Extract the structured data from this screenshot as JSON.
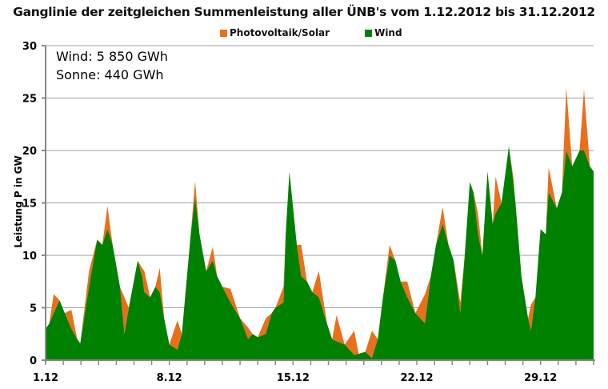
{
  "chart_data": {
    "type": "area",
    "stacked": true,
    "title": "Ganglinie der zeitgleichen Summenleistung aller ÜNB's vom 1.12.2012 bis 31.12.2012",
    "ylabel": "Leistung P in GW",
    "xlabel": "",
    "ylim": [
      0,
      30
    ],
    "yticks": [
      "0",
      "5",
      "10",
      "15",
      "20",
      "25",
      "30"
    ],
    "xticks": [
      "1.12",
      "8.12",
      "15.12",
      "22.12",
      "29.12"
    ],
    "grid": true,
    "legend_placement": "top",
    "annotations": [
      "Wind:  5 850 GWh",
      "Sonne:  440 GWh"
    ],
    "series": [
      {
        "name": "Photovoltaik/Solar",
        "color": "#E8701A"
      },
      {
        "name": "Wind",
        "color": "#008000"
      }
    ],
    "point_format": [
      "date time",
      "Wind GW",
      "Photovoltaik/Solar GW"
    ],
    "points": [
      [
        "01.12. 00:00",
        3,
        0
      ],
      [
        "01.12. 05:00",
        3.5,
        0
      ],
      [
        "01.12. 11:00",
        4.5,
        1.8
      ],
      [
        "01.12. 19:00",
        5.7,
        0
      ],
      [
        "02.12. 02:00",
        4.5,
        0
      ],
      [
        "02.12. 11:00",
        3,
        1.8
      ],
      [
        "02.12. 19:00",
        2,
        0
      ],
      [
        "02.12. 23:00",
        1.6,
        0
      ],
      [
        "03.12. 11:00",
        7,
        1.5
      ],
      [
        "03.12. 22:00",
        11.5,
        0
      ],
      [
        "04.12. 05:00",
        11,
        0
      ],
      [
        "04.12. 12:00",
        12.5,
        2.2
      ],
      [
        "04.12. 19:00",
        11,
        0
      ],
      [
        "05.12. 05:00",
        7,
        0
      ],
      [
        "05.12. 11:00",
        2.5,
        3.5
      ],
      [
        "05.12. 17:00",
        5,
        0
      ],
      [
        "06.12. 05:00",
        9.5,
        0
      ],
      [
        "06.12. 11:00",
        8,
        0.8
      ],
      [
        "06.12. 14:00",
        6.5,
        2
      ],
      [
        "06.12. 22:00",
        6,
        0
      ],
      [
        "07.12. 05:00",
        7,
        0
      ],
      [
        "07.12. 11:00",
        6.5,
        2.3
      ],
      [
        "07.12. 17:00",
        4,
        0
      ],
      [
        "08.12. 00:00",
        1.5,
        0
      ],
      [
        "08.12. 11:00",
        1,
        2.8
      ],
      [
        "08.12. 17:00",
        2.5,
        0
      ],
      [
        "09.12. 05:00",
        12,
        0
      ],
      [
        "09.12. 11:00",
        15.5,
        1.6
      ],
      [
        "09.12. 17:00",
        12,
        0
      ],
      [
        "10.12. 02:00",
        8.5,
        0
      ],
      [
        "10.12. 11:00",
        9.5,
        1.3
      ],
      [
        "10.12. 17:00",
        8,
        0
      ],
      [
        "11.12. 00:00",
        7,
        0
      ],
      [
        "11.12. 11:00",
        5.5,
        1.3
      ],
      [
        "12.12. 00:00",
        4,
        0
      ],
      [
        "12.12. 11:00",
        2,
        1.1
      ],
      [
        "12.12. 17:00",
        2.5,
        0
      ],
      [
        "13.12. 00:00",
        2.2,
        0
      ],
      [
        "13.12. 11:00",
        2.5,
        1.5
      ],
      [
        "13.12. 19:00",
        4.5,
        0
      ],
      [
        "14.12. 00:00",
        5,
        0
      ],
      [
        "14.12. 11:00",
        5.5,
        1.5
      ],
      [
        "14.12. 14:00",
        12,
        0
      ],
      [
        "14.12. 19:00",
        18,
        0
      ],
      [
        "15.12. 05:00",
        11,
        0
      ],
      [
        "15.12. 11:00",
        8,
        3
      ],
      [
        "15.12. 19:00",
        7.5,
        0
      ],
      [
        "16.12. 02:00",
        6.5,
        0
      ],
      [
        "16.12. 11:00",
        6,
        2.5
      ],
      [
        "16.12. 22:00",
        3.5,
        0
      ],
      [
        "17.12. 05:00",
        2,
        0
      ],
      [
        "17.12. 11:00",
        1.8,
        2.5
      ],
      [
        "17.12. 22:00",
        1.5,
        0
      ],
      [
        "18.12. 11:00",
        0.5,
        2.3
      ],
      [
        "18.12. 17:00",
        0.6,
        0
      ],
      [
        "19.12. 02:00",
        0.8,
        0
      ],
      [
        "19.12. 11:00",
        0.2,
        2.6
      ],
      [
        "19.12. 19:00",
        2,
        0
      ],
      [
        "20.12. 02:00",
        6,
        0
      ],
      [
        "20.12. 11:00",
        10,
        1
      ],
      [
        "20.12. 19:00",
        9.5,
        0
      ],
      [
        "21.12. 02:00",
        7.5,
        0
      ],
      [
        "21.12. 11:00",
        6,
        1.5
      ],
      [
        "21.12. 22:00",
        4.5,
        0
      ],
      [
        "22.12. 11:00",
        3.5,
        2.8
      ],
      [
        "22.12. 19:00",
        8,
        0
      ],
      [
        "23.12. 02:00",
        11,
        0
      ],
      [
        "23.12. 11:00",
        13,
        1.6
      ],
      [
        "23.12. 19:00",
        11,
        0
      ],
      [
        "24.12. 02:00",
        9.5,
        0
      ],
      [
        "24.12. 11:00",
        4.5,
        1
      ],
      [
        "24.12. 17:00",
        10,
        0
      ],
      [
        "25.12. 00:00",
        17,
        0
      ],
      [
        "25.12. 05:00",
        16,
        0
      ],
      [
        "25.12. 11:00",
        12,
        2
      ],
      [
        "25.12. 17:00",
        10,
        0
      ],
      [
        "26.12. 00:00",
        18,
        0
      ],
      [
        "26.12. 07:00",
        13,
        0
      ],
      [
        "26.12. 11:00",
        14,
        3.5
      ],
      [
        "26.12. 19:00",
        15,
        0
      ],
      [
        "27.12. 05:00",
        20.4,
        0
      ],
      [
        "27.12. 11:00",
        17,
        0.5
      ],
      [
        "27.12. 14:00",
        15,
        0
      ],
      [
        "27.12. 22:00",
        8,
        0
      ],
      [
        "28.12. 07:00",
        4,
        0
      ],
      [
        "28.12. 11:00",
        2.8,
        2.5
      ],
      [
        "28.12. 17:00",
        6,
        0
      ],
      [
        "29.12. 00:00",
        12.5,
        0
      ],
      [
        "29.12. 07:00",
        12,
        0
      ],
      [
        "29.12. 11:00",
        16,
        2.4
      ],
      [
        "29.12. 22:00",
        14.5,
        0
      ],
      [
        "30.12. 05:00",
        16,
        0
      ],
      [
        "30.12. 11:00",
        20,
        6
      ],
      [
        "30.12. 19:00",
        18.5,
        0
      ],
      [
        "31.12. 05:00",
        20,
        0
      ],
      [
        "31.12. 11:00",
        20,
        5.8
      ],
      [
        "31.12. 19:00",
        18.5,
        0
      ],
      [
        "31.12. 23:59",
        18,
        0
      ]
    ]
  }
}
